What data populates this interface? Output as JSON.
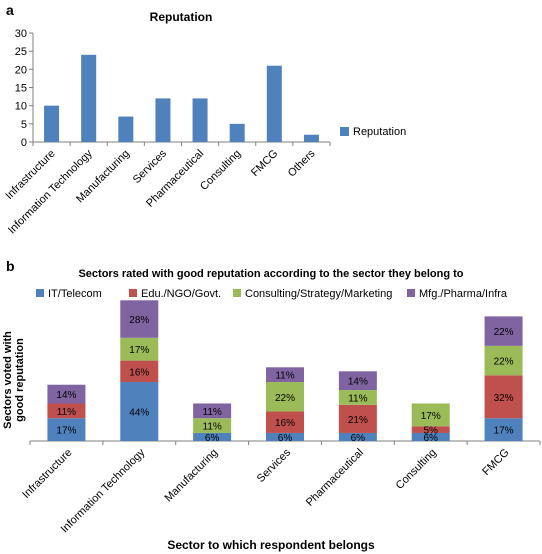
{
  "panels": {
    "a": "a",
    "b": "b"
  },
  "chart_data": [
    {
      "type": "bar",
      "title": "Reputation",
      "categories": [
        "Infrastructure",
        "Information Technology",
        "Manufacturing",
        "Services",
        "Pharmaceutical",
        "Consulting",
        "FMCG",
        "Others"
      ],
      "series": [
        {
          "name": "Reputation",
          "values": [
            10,
            24,
            7,
            12,
            12,
            5,
            21,
            2
          ]
        }
      ],
      "xlabel": "",
      "ylabel": "",
      "ylim": [
        0,
        30
      ],
      "yticks": [
        0,
        5,
        10,
        15,
        20,
        25,
        30
      ],
      "grid": false,
      "legend": "right",
      "colors": {
        "Reputation": "#4f81bd"
      }
    },
    {
      "type": "bar",
      "stacked": true,
      "title": "Sectors rated with good reputation according to the sector they belong to",
      "categories": [
        "Infrastructure",
        "Information Technology",
        "Manufacturing",
        "Services",
        "Pharmaceutical",
        "Consulting",
        "FMCG"
      ],
      "series": [
        {
          "name": "IT/Telecom",
          "values": [
            17,
            44,
            6,
            6,
            6,
            6,
            17
          ]
        },
        {
          "name": "Edu./NGO/Govt.",
          "values": [
            11,
            16,
            0,
            16,
            21,
            5,
            32
          ]
        },
        {
          "name": "Consulting/Strategy/Marketing",
          "values": [
            0,
            17,
            11,
            22,
            11,
            17,
            22
          ]
        },
        {
          "name": "Mfg./Pharma/Infra",
          "values": [
            14,
            28,
            11,
            11,
            14,
            0,
            22
          ]
        }
      ],
      "xlabel": "Sector to which respondent belongs",
      "ylabel": "Sectors voted with good reputation",
      "value_suffix": "%",
      "grid": false,
      "legend": "top",
      "colors": {
        "IT/Telecom": "#4f81bd",
        "Edu./NGO/Govt.": "#c0504d",
        "Consulting/Strategy/Marketing": "#9bbb59",
        "Mfg./Pharma/Infra": "#8064a2"
      }
    }
  ]
}
